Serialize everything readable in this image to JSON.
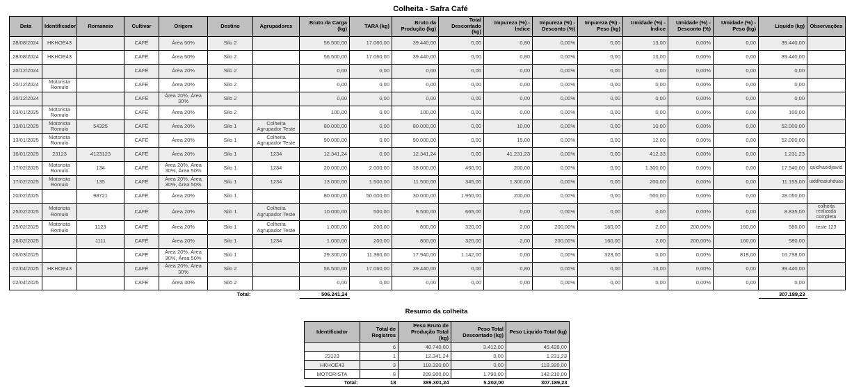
{
  "page_title": "Colheita - Safra Café",
  "colors": {
    "header_bg": "#bfbfbf",
    "stripe_bg": "#ececec",
    "border": "#000000",
    "text": "#3d3d3d"
  },
  "main_table": {
    "columns": [
      "Data",
      "Identificador",
      "Romaneio",
      "Cultivar",
      "Origem",
      "Destino",
      "Agrupadores",
      "Bruto da Carga (kg)",
      "TARA (kg)",
      "Bruto da Produção (kg)",
      "Total Descontado (kg)",
      "Impureza (%) - Índice",
      "Impureza (%) - Desconto (%)",
      "Impureza (%) - Peso (kg)",
      "Umidade (%) - Índice",
      "Umidade (%) - Desconto (%)",
      "Umidade (%) - Peso (kg)",
      "Liquido (kg)",
      "Observações"
    ],
    "rows": [
      [
        "28/08/2024",
        "HKHOE43",
        "",
        "CAFÉ",
        "Área 50%",
        "Silo 2",
        "",
        "56.500,00",
        "17.060,00",
        "39.440,00",
        "0,00",
        "0,80",
        "0,00%",
        "0,00",
        "13,00",
        "0,00%",
        "0,00",
        "39.440,00",
        ""
      ],
      [
        "28/08/2024",
        "HKHOE43",
        "",
        "CAFÉ",
        "Área 50%",
        "Silo 2",
        "",
        "56.500,00",
        "17.060,00",
        "39.440,00",
        "0,00",
        "0,80",
        "0,00%",
        "0,00",
        "13,00",
        "0,00%",
        "0,00",
        "39.440,00",
        ""
      ],
      [
        "20/12/2024",
        "",
        "",
        "CAFÉ",
        "Área 20%",
        "Silo 2",
        "",
        "0,00",
        "0,00",
        "0,00",
        "0,00",
        "0,00",
        "0,00%",
        "0,00",
        "0,00",
        "0,00%",
        "0,00",
        "0,00",
        ""
      ],
      [
        "20/12/2024",
        "Motorista Romulo",
        "",
        "CAFÉ",
        "Área 20%",
        "Silo 2",
        "",
        "0,00",
        "0,00",
        "0,00",
        "0,00",
        "0,00",
        "0,00%",
        "0,00",
        "0,00",
        "0,00%",
        "0,00",
        "0,00",
        ""
      ],
      [
        "20/12/2024",
        "",
        "",
        "CAFÉ",
        "Área 20%, Área 30%",
        "Silo 2",
        "",
        "0,00",
        "0,00",
        "0,00",
        "0,00",
        "0,00",
        "0,00%",
        "0,00",
        "0,00",
        "0,00%",
        "0,00",
        "0,00",
        ""
      ],
      [
        "03/01/2025",
        "Motorista Romulo",
        "",
        "CAFÉ",
        "Área 20%",
        "Silo 2",
        "",
        "100,00",
        "0,00",
        "100,00",
        "0,00",
        "0,00",
        "0,00%",
        "0,00",
        "0,00",
        "0,00%",
        "0,00",
        "100,00",
        ""
      ],
      [
        "13/01/2025",
        "Motorista Romulo",
        "54325",
        "CAFÉ",
        "Área 20%",
        "Silo 1",
        "Colheita Agrupador Teste",
        "80.000,00",
        "0,00",
        "80.000,00",
        "0,00",
        "10,00",
        "0,00%",
        "0,00",
        "10,00",
        "0,00%",
        "0,00",
        "52.000,00",
        ""
      ],
      [
        "13/01/2025",
        "Motorista Romulo",
        "",
        "CAFÉ",
        "Área 20%",
        "Silo 1",
        "Colheita Agrupador Teste",
        "90.000,00",
        "0,00",
        "90.000,00",
        "0,00",
        "15,00",
        "0,00%",
        "0,00",
        "12,00",
        "0,00%",
        "0,00",
        "52.000,00",
        ""
      ],
      [
        "16/01/2025",
        "23123",
        "4123123",
        "CAFÉ",
        "Área 20%",
        "Silo 1",
        "1234",
        "12.341,24",
        "0,00",
        "12.341,24",
        "0,00",
        "41.231,23",
        "0,00%",
        "0,00",
        "412,33",
        "0,00%",
        "0,00",
        "1.231,23",
        ""
      ],
      [
        "17/02/2025",
        "Motorista Romulo",
        "134",
        "CAFÉ",
        "Área 20%, Área 30%, Área 50%",
        "Silo 1",
        "1234",
        "20.000,00",
        "2.000,00",
        "18.000,00",
        "460,00",
        "200,00",
        "0,00%",
        "0,00",
        "1.300,00",
        "0,00%",
        "0,00",
        "17.540,00",
        "quidhaoidjawid"
      ],
      [
        "17/02/2025",
        "Motorista Romulo",
        "135",
        "CAFÉ",
        "Área 20%, Área 30%, Área 50%",
        "Silo 1",
        "1234",
        "13.000,00",
        "1.500,00",
        "11.500,00",
        "345,00",
        "1.300,00",
        "0,00%",
        "0,00",
        "200,00",
        "0,00%",
        "0,00",
        "11.155,00",
        "uiddhsaiuhduas"
      ],
      [
        "20/02/2025",
        "",
        "98721",
        "CAFÉ",
        "Área 20%",
        "Silo 1",
        "",
        "80.000,00",
        "50.000,00",
        "30.000,00",
        "1.950,00",
        "200,00",
        "0,00%",
        "0,00",
        "500,00",
        "0,00%",
        "0,00",
        "28.050,00",
        ""
      ],
      [
        "25/02/2025",
        "Motorista Romulo",
        "",
        "CAFÉ",
        "Área 20%",
        "Silo 1",
        "Colheita Agrupador Teste",
        "10.000,00",
        "500,00",
        "9.500,00",
        "665,00",
        "0,00",
        "0,00%",
        "0,00",
        "0,00",
        "0,00%",
        "0,00",
        "8.835,00",
        "colheita realizada completa"
      ],
      [
        "25/02/2025",
        "Motorista Romulo",
        "1123",
        "CAFÉ",
        "Área 20%",
        "Silo 1",
        "Colheita Agrupador Teste",
        "1.000,00",
        "200,00",
        "800,00",
        "320,00",
        "2,00",
        "200,00%",
        "160,00",
        "2,00",
        "200,00%",
        "160,00",
        "580,00",
        "teste 123"
      ],
      [
        "26/02/2025",
        "",
        "1111",
        "CAFÉ",
        "Área 20%",
        "Silo 1",
        "1234",
        "1.000,00",
        "200,00",
        "800,00",
        "320,00",
        "2,00",
        "200,00%",
        "160,00",
        "2,00",
        "200,00%",
        "160,00",
        "580,00",
        ""
      ],
      [
        "06/03/2025",
        "",
        "",
        "CAFÉ",
        "Área 20%, Área 30%, Área 50%",
        "Silo 1",
        "",
        "29.300,00",
        "11.360,00",
        "17.940,00",
        "1.142,00",
        "0,00",
        "0,00%",
        "323,00",
        "0,00",
        "0,00%",
        "819,00",
        "16.798,00",
        ""
      ],
      [
        "02/04/2025",
        "HKHOE43",
        "",
        "CAFÉ",
        "Área 20%, Área 30%",
        "Silo 2",
        "",
        "56.500,00",
        "17.060,00",
        "39.440,00",
        "0,00",
        "0,80",
        "0,00%",
        "0,00",
        "13,00",
        "0,00%",
        "0,00",
        "39.440,00",
        ""
      ],
      [
        "02/04/2025",
        "",
        "",
        "CAFÉ",
        "Área 30%",
        "Silo 2",
        "",
        "0,00",
        "0,00",
        "0,00",
        "0,00",
        "0,00",
        "0,00%",
        "0,00",
        "0,00",
        "0,00%",
        "0,00",
        "0,00",
        ""
      ]
    ],
    "total": {
      "label": "Total:",
      "bruto_carga": "506.241,24",
      "liquido": "307.189,23"
    }
  },
  "summary_table": {
    "title": "Resumo da colheita",
    "columns": [
      "Identificador",
      "Total de Registros",
      "Peso Bruto de Produção Total (kg)",
      "Peso Total Descontado (kg)",
      "Peso Liquido Total (kg)"
    ],
    "rows": [
      [
        "",
        "6",
        "48.740,00",
        "3.412,00",
        "45.428,00"
      ],
      [
        "23123",
        "1",
        "12.341,24",
        "0,00",
        "1.231,23"
      ],
      [
        "HKHOE43",
        "3",
        "118.320,00",
        "0,00",
        "118.320,00"
      ],
      [
        "MOTORISTA",
        "8",
        "209.900,00",
        "1.790,00",
        "142.210,00"
      ]
    ],
    "total_row": [
      "Total:",
      "18",
      "389.301,24",
      "5.202,00",
      "307.189,23"
    ]
  }
}
